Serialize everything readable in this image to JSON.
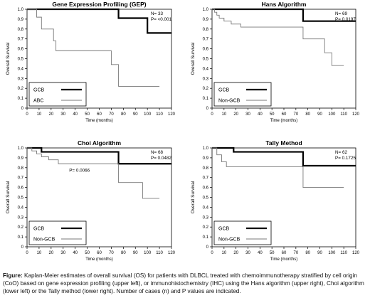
{
  "chart_data": [
    {
      "type": "line",
      "title": "Gene Expression Profiling (GEP)",
      "xlabel": "Time (months)",
      "ylabel": "Overall Survival",
      "xlim": [
        0,
        120
      ],
      "ylim": [
        0,
        1.0
      ],
      "xticks": [
        "0",
        "10",
        "20",
        "30",
        "40",
        "50",
        "60",
        "70",
        "80",
        "90",
        "100",
        "110",
        "120"
      ],
      "yticks": [
        "0",
        "0.1",
        "0.2",
        "0.3",
        "0.4",
        "0.5",
        "0.6",
        "0.7",
        "0.8",
        "0.9",
        "1.0"
      ],
      "stats": [
        "N= 33",
        "P= <0.001"
      ],
      "annotation": "",
      "legend_position": "bottom-left",
      "series": [
        {
          "name": "GCB",
          "style": "thick",
          "x": [
            0,
            76,
            76,
            100,
            100,
            120
          ],
          "y": [
            1.0,
            1.0,
            0.91,
            0.91,
            0.76,
            0.76
          ]
        },
        {
          "name": "ABC",
          "style": "thin",
          "x": [
            0,
            8,
            8,
            12,
            12,
            22,
            22,
            24,
            24,
            60,
            60,
            70,
            70,
            76,
            76,
            110
          ],
          "y": [
            1.0,
            1.0,
            0.92,
            0.92,
            0.8,
            0.8,
            0.68,
            0.68,
            0.58,
            0.58,
            0.58,
            0.58,
            0.44,
            0.44,
            0.22,
            0.22
          ]
        }
      ]
    },
    {
      "type": "line",
      "title": "Hans Algorithm",
      "xlabel": "Time (months)",
      "ylabel": "Overall Survival",
      "xlim": [
        0,
        120
      ],
      "ylim": [
        0,
        1.0
      ],
      "xticks": [
        "0",
        "10",
        "20",
        "30",
        "40",
        "50",
        "60",
        "70",
        "80",
        "90",
        "100",
        "110",
        "120"
      ],
      "yticks": [
        "0",
        "0.1",
        "0.2",
        "0.3",
        "0.4",
        "0.5",
        "0.6",
        "0.7",
        "0.8",
        "0.9",
        "1.0"
      ],
      "stats": [
        "N= 69",
        "P= 0.0197"
      ],
      "annotation": "",
      "legend_position": "bottom-left",
      "series": [
        {
          "name": "GCB",
          "style": "thick",
          "x": [
            0,
            76,
            76,
            120
          ],
          "y": [
            1.0,
            1.0,
            0.88,
            0.88
          ]
        },
        {
          "name": "Non-GCB",
          "style": "thin",
          "x": [
            0,
            2,
            2,
            4,
            4,
            6,
            6,
            10,
            10,
            16,
            16,
            24,
            24,
            76,
            76,
            94,
            94,
            100,
            100,
            110
          ],
          "y": [
            1.0,
            1.0,
            0.97,
            0.97,
            0.94,
            0.94,
            0.91,
            0.91,
            0.88,
            0.88,
            0.85,
            0.85,
            0.82,
            0.82,
            0.7,
            0.7,
            0.56,
            0.56,
            0.43,
            0.43
          ]
        }
      ]
    },
    {
      "type": "line",
      "title": "Choi Algorithm",
      "xlabel": "Time (months)",
      "ylabel": "Overall Survival",
      "xlim": [
        0,
        120
      ],
      "ylim": [
        0,
        1.0
      ],
      "xticks": [
        "0",
        "10",
        "20",
        "30",
        "40",
        "50",
        "60",
        "70",
        "80",
        "90",
        "100",
        "110",
        "120"
      ],
      "yticks": [
        "0",
        "0.1",
        "0.2",
        "0.3",
        "0.4",
        "0.5",
        "0.6",
        "0.7",
        "0.8",
        "0.9",
        "1.0"
      ],
      "stats": [
        "N= 68",
        "P= 0.0482"
      ],
      "annotation": "P= 0.0066",
      "legend_position": "bottom-left",
      "series": [
        {
          "name": "GCB",
          "style": "thick",
          "x": [
            0,
            12,
            12,
            76,
            76,
            120
          ],
          "y": [
            1.0,
            1.0,
            0.96,
            0.96,
            0.84,
            0.84
          ]
        },
        {
          "name": "Non-GCB",
          "style": "thin",
          "x": [
            0,
            4,
            4,
            8,
            8,
            12,
            12,
            18,
            18,
            26,
            26,
            76,
            76,
            96,
            96,
            110
          ],
          "y": [
            1.0,
            1.0,
            0.97,
            0.97,
            0.94,
            0.94,
            0.91,
            0.91,
            0.88,
            0.88,
            0.84,
            0.84,
            0.65,
            0.65,
            0.49,
            0.49
          ]
        }
      ]
    },
    {
      "type": "line",
      "title": "Tally Method",
      "xlabel": "Time (months)",
      "ylabel": "Overall Survival",
      "xlim": [
        0,
        120
      ],
      "ylim": [
        0,
        1.0
      ],
      "xticks": [
        "0",
        "10",
        "20",
        "30",
        "40",
        "50",
        "60",
        "70",
        "80",
        "90",
        "100",
        "110",
        "120"
      ],
      "yticks": [
        "0",
        "0.1",
        "0.2",
        "0.3",
        "0.4",
        "0.5",
        "0.6",
        "0.7",
        "0.8",
        "0.9",
        "1.0"
      ],
      "stats": [
        "N= 62",
        "P= 0.1725"
      ],
      "annotation": "",
      "legend_position": "bottom-left",
      "series": [
        {
          "name": "GCB",
          "style": "thick",
          "x": [
            0,
            18,
            18,
            76,
            76,
            120
          ],
          "y": [
            1.0,
            1.0,
            0.96,
            0.96,
            0.82,
            0.82
          ]
        },
        {
          "name": "Non-GCB",
          "style": "thin",
          "x": [
            0,
            4,
            4,
            8,
            8,
            12,
            12,
            76,
            76,
            110
          ],
          "y": [
            1.0,
            1.0,
            0.93,
            0.93,
            0.86,
            0.86,
            0.81,
            0.81,
            0.6,
            0.6
          ]
        }
      ]
    }
  ],
  "caption": {
    "label": "Figure:",
    "text": "Kaplan-Meier estimates of overall survival (OS) for patients with DLBCL treated with chemoimmunotherapy stratified by cell origin (CoO) based on gene expression profiling (upper left), or immunohistochemistry (IHC) using the Hans algorithm (upper right), Choi algorithm (lower left) or the Tally method (lower right).  Number of cases (n) and P values are indicated."
  },
  "colors": {
    "thick_line": "#000000",
    "thin_line": "#7a7a7a",
    "axis": "#000000"
  }
}
